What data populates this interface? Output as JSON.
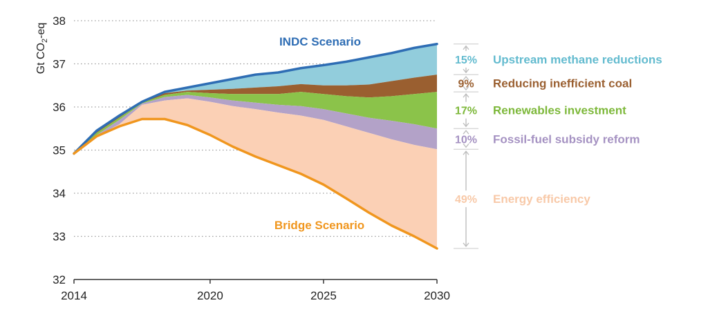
{
  "chart_data": {
    "type": "area",
    "title": "",
    "xlabel": "",
    "ylabel_main": "Gt CO",
    "ylabel_sub": "2",
    "ylabel_suffix": "-eq",
    "xlim": [
      2014,
      2030
    ],
    "ylim": [
      32,
      38
    ],
    "x_ticks": [
      2014,
      2020,
      2025,
      2030
    ],
    "x_tick_labels": [
      "2014",
      "2020",
      "2025",
      "2030"
    ],
    "y_ticks": [
      32,
      33,
      34,
      35,
      36,
      37,
      38
    ],
    "y_tick_labels": [
      "32",
      "33",
      "34",
      "35",
      "36",
      "37",
      "38"
    ],
    "grid": true,
    "x": [
      2014,
      2015,
      2016,
      2017,
      2018,
      2019,
      2020,
      2021,
      2022,
      2023,
      2024,
      2025,
      2026,
      2027,
      2028,
      2029,
      2030
    ],
    "lines": [
      {
        "name": "INDC Scenario",
        "color": "#2E6DB4",
        "values": [
          34.92,
          35.45,
          35.8,
          36.12,
          36.35,
          36.45,
          36.55,
          36.65,
          36.75,
          36.8,
          36.9,
          36.97,
          37.05,
          37.15,
          37.25,
          37.37,
          37.46
        ]
      },
      {
        "name": "Bridge Scenario",
        "color": "#F0961E",
        "values": [
          34.92,
          35.32,
          35.55,
          35.72,
          35.72,
          35.58,
          35.35,
          35.08,
          34.85,
          34.65,
          34.45,
          34.2,
          33.88,
          33.55,
          33.25,
          33.0,
          32.72
        ]
      }
    ],
    "boundaries": [
      {
        "name": "b_eff_fossil",
        "values": [
          34.92,
          35.32,
          35.6,
          36.05,
          36.15,
          36.2,
          36.12,
          36.02,
          35.95,
          35.87,
          35.8,
          35.7,
          35.55,
          35.4,
          35.25,
          35.12,
          35.02
        ]
      },
      {
        "name": "b_fossil_renew",
        "values": [
          34.92,
          35.35,
          35.7,
          36.08,
          36.23,
          36.28,
          36.22,
          36.15,
          36.1,
          36.05,
          36.02,
          35.95,
          35.85,
          35.75,
          35.68,
          35.6,
          35.5
        ]
      },
      {
        "name": "b_renew_coal",
        "values": [
          34.92,
          35.4,
          35.75,
          36.1,
          36.28,
          36.35,
          36.32,
          36.3,
          36.3,
          36.3,
          36.35,
          36.3,
          36.25,
          36.22,
          36.25,
          36.3,
          36.35
        ]
      },
      {
        "name": "b_coal_methane",
        "values": [
          34.92,
          35.43,
          35.78,
          36.11,
          36.32,
          36.38,
          36.4,
          36.42,
          36.45,
          36.48,
          36.53,
          36.5,
          36.5,
          36.52,
          36.6,
          36.68,
          36.75
        ]
      }
    ],
    "bands": [
      {
        "name": "Upstream methane reductions",
        "percent": "15%",
        "fill": "#92CDDC",
        "text_color": "#63BBCF",
        "lower": "b_coal_methane",
        "upper": "INDC Scenario"
      },
      {
        "name": "Reducing inefficient coal",
        "percent": "9%",
        "fill": "#9A5F30",
        "text_color": "#9A5F30",
        "lower": "b_renew_coal",
        "upper": "b_coal_methane"
      },
      {
        "name": "Renewables investment",
        "percent": "17%",
        "fill": "#8BC34A",
        "text_color": "#7DB83A",
        "lower": "b_fossil_renew",
        "upper": "b_renew_coal"
      },
      {
        "name": "Fossil-fuel subsidy reform",
        "percent": "10%",
        "fill": "#B3A2C8",
        "text_color": "#A592C2",
        "lower": "b_eff_fossil",
        "upper": "b_fossil_renew"
      },
      {
        "name": "Energy efficiency",
        "percent": "49%",
        "fill": "#FBD0B5",
        "text_color": "#F8C9A8",
        "lower": "Bridge Scenario",
        "upper": "b_eff_fossil"
      }
    ]
  }
}
